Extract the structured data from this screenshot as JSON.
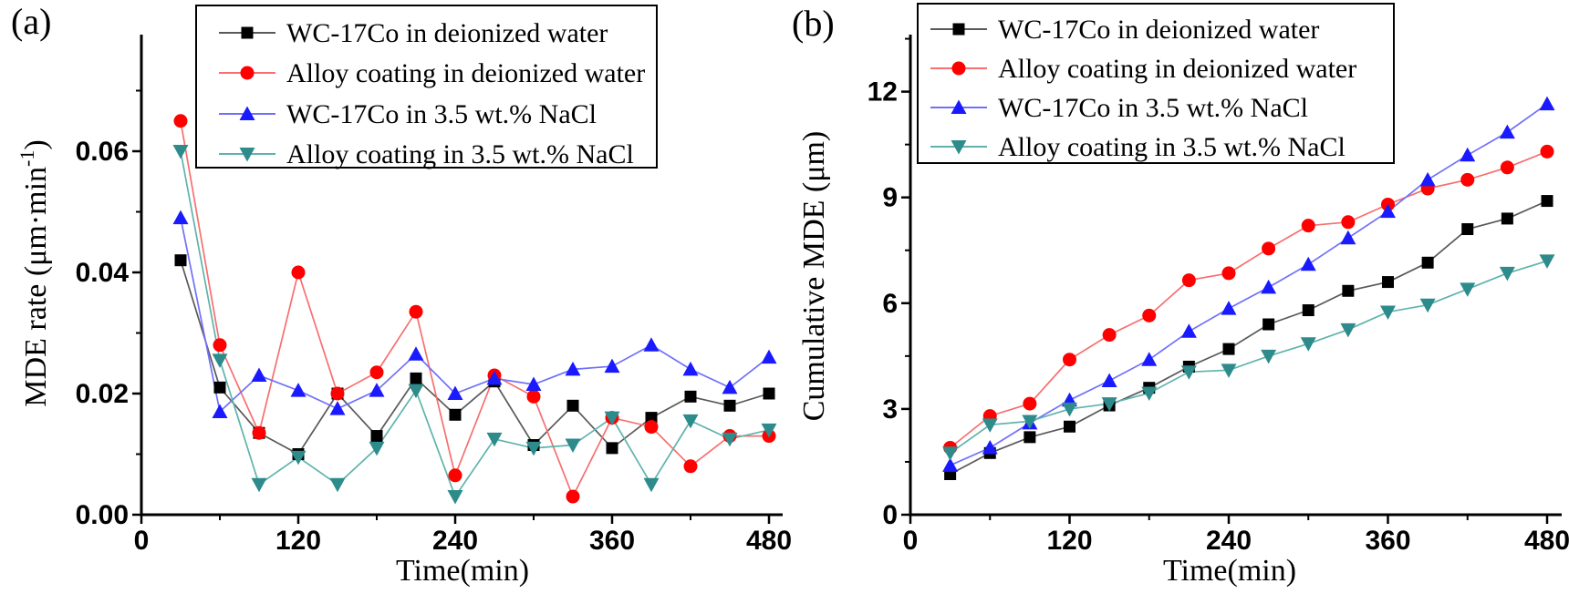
{
  "figure": {
    "background": "#ffffff",
    "axis_color": "#000000"
  },
  "chart_data": [
    {
      "id": "a",
      "type": "line",
      "tag": "(a)",
      "xlabel": "Time(min)",
      "ylabel_parts": [
        {
          "text": "MDE rate (μm·min"
        },
        {
          "text": "-1",
          "sup": true
        },
        {
          "text": ")"
        }
      ],
      "x": [
        30,
        60,
        90,
        120,
        150,
        180,
        210,
        240,
        270,
        300,
        330,
        360,
        390,
        420,
        450,
        480
      ],
      "series": [
        {
          "name": "WC-17Co  in deionized water",
          "marker": "square",
          "marker_color": "#000000",
          "line_color": "#595959",
          "values": [
            0.042,
            0.021,
            0.0135,
            0.01,
            0.02,
            0.013,
            0.0225,
            0.0165,
            0.022,
            0.0115,
            0.018,
            0.011,
            0.016,
            0.0195,
            0.018,
            0.02
          ]
        },
        {
          "name": "Alloy coating in deionized water",
          "marker": "circle",
          "marker_color": "#fe0000",
          "line_color": "#f76f6f",
          "values": [
            0.065,
            0.028,
            0.0135,
            0.04,
            0.02,
            0.0235,
            0.0335,
            0.0065,
            0.023,
            0.0195,
            0.003,
            0.016,
            0.0145,
            0.008,
            0.013,
            0.013
          ]
        },
        {
          "name": "WC-17Co in 3.5 wt.% NaCl",
          "marker": "triangle-up",
          "marker_color": "#1a1aff",
          "line_color": "#7070fa",
          "values": [
            0.049,
            0.017,
            0.023,
            0.0205,
            0.0175,
            0.0205,
            0.0265,
            0.02,
            0.0225,
            0.0215,
            0.024,
            0.0245,
            0.028,
            0.024,
            0.021,
            0.026
          ]
        },
        {
          "name": "Alloy coating in 3.5 wt.% NaCl",
          "marker": "triangle-down",
          "marker_color": "#2e8b8b",
          "line_color": "#5fb3ac",
          "values": [
            0.06,
            0.0255,
            0.005,
            0.0095,
            0.005,
            0.011,
            0.0205,
            0.003,
            0.0125,
            0.011,
            0.0115,
            0.016,
            0.005,
            0.0155,
            0.0125,
            0.014
          ]
        }
      ],
      "xlim": [
        0,
        490
      ],
      "ylim": [
        0,
        0.0793
      ],
      "xticks": {
        "major": [
          {
            "v": 0,
            "label": "0"
          },
          {
            "v": 120,
            "label": "120"
          },
          {
            "v": 240,
            "label": "240"
          },
          {
            "v": 360,
            "label": "360"
          },
          {
            "v": 480,
            "label": "480"
          }
        ],
        "minor": [
          60,
          180,
          300,
          420
        ]
      },
      "yticks": {
        "major": [
          {
            "v": 0,
            "label": "0.00"
          },
          {
            "v": 0.02,
            "label": "0.02"
          },
          {
            "v": 0.04,
            "label": "0.04"
          },
          {
            "v": 0.06,
            "label": "0.06"
          }
        ],
        "minor": [
          0.01,
          0.03,
          0.05,
          0.07
        ]
      },
      "grid": false,
      "legend_position": "top-inside"
    },
    {
      "id": "b",
      "type": "line",
      "tag": "(b)",
      "xlabel": "Time(min)",
      "ylabel_parts": [
        {
          "text": "Cumulative MDE (μm)"
        }
      ],
      "x": [
        30,
        60,
        90,
        120,
        150,
        180,
        210,
        240,
        270,
        300,
        330,
        360,
        390,
        420,
        450,
        480
      ],
      "series": [
        {
          "name": "WC-17Co  in deionized water",
          "marker": "square",
          "marker_color": "#000000",
          "line_color": "#595959",
          "values": [
            1.15,
            1.75,
            2.2,
            2.5,
            3.1,
            3.6,
            4.2,
            4.7,
            5.4,
            5.8,
            6.35,
            6.6,
            7.15,
            8.1,
            8.4,
            8.9
          ]
        },
        {
          "name": "Alloy coating in deionized water",
          "marker": "circle",
          "marker_color": "#fe0000",
          "line_color": "#f76f6f",
          "values": [
            1.9,
            2.8,
            3.15,
            4.4,
            5.1,
            5.65,
            6.65,
            6.85,
            7.55,
            8.2,
            8.3,
            8.8,
            9.25,
            9.5,
            9.85,
            10.3
          ]
        },
        {
          "name": "WC-17Co  in 3.5 wt.% NaCl",
          "marker": "triangle-up",
          "marker_color": "#1a1aff",
          "line_color": "#7070fa",
          "values": [
            1.4,
            1.9,
            2.6,
            3.25,
            3.8,
            4.4,
            5.2,
            5.85,
            6.45,
            7.1,
            7.85,
            8.6,
            9.5,
            10.2,
            10.85,
            11.65
          ]
        },
        {
          "name": "Alloy coating in 3.5 wt.% NaCl",
          "marker": "triangle-down",
          "marker_color": "#2e8b8b",
          "line_color": "#5fb3ac",
          "values": [
            1.75,
            2.55,
            2.65,
            3.0,
            3.15,
            3.45,
            4.05,
            4.1,
            4.5,
            4.85,
            5.25,
            5.75,
            5.95,
            6.4,
            6.85,
            7.2
          ]
        }
      ],
      "xlim": [
        0,
        490
      ],
      "ylim": [
        0,
        13.6
      ],
      "xticks": {
        "major": [
          {
            "v": 0,
            "label": "0"
          },
          {
            "v": 120,
            "label": "120"
          },
          {
            "v": 240,
            "label": "240"
          },
          {
            "v": 360,
            "label": "360"
          },
          {
            "v": 480,
            "label": "480"
          }
        ],
        "minor": [
          60,
          180,
          300,
          420
        ]
      },
      "yticks": {
        "major": [
          {
            "v": 0,
            "label": "0"
          },
          {
            "v": 3,
            "label": "3"
          },
          {
            "v": 6,
            "label": "6"
          },
          {
            "v": 9,
            "label": "9"
          },
          {
            "v": 12,
            "label": "12"
          }
        ],
        "minor": [
          1.5,
          4.5,
          7.5,
          10.5,
          13.5
        ]
      },
      "grid": false,
      "legend_position": "top-inside"
    }
  ]
}
